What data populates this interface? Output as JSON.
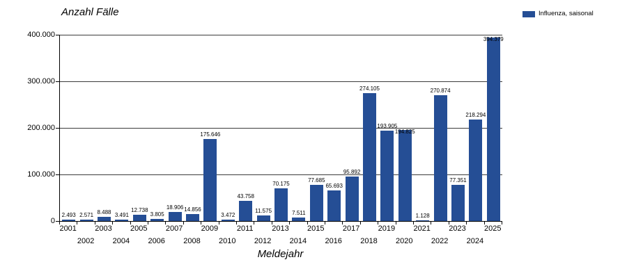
{
  "chart": {
    "title": "Anzahl Fälle",
    "x_axis_title": "Meldejahr"
  },
  "legend": {
    "label": "Influenza, saisonal",
    "swatch_color": "#254E95"
  },
  "chart_data": {
    "type": "bar",
    "title": "Anzahl Fälle",
    "xlabel": "Meldejahr",
    "ylabel": "Anzahl Fälle",
    "categories": [
      "2001",
      "2002",
      "2003",
      "2004",
      "2005",
      "2006",
      "2007",
      "2008",
      "2009",
      "2010",
      "2011",
      "2012",
      "2013",
      "2014",
      "2015",
      "2016",
      "2017",
      "2018",
      "2019",
      "2020",
      "2021",
      "2022",
      "2023",
      "2024",
      "2025"
    ],
    "series": [
      {
        "name": "Influenza, saisonal",
        "color": "#254E95",
        "values": [
          2493,
          2571,
          8488,
          3491,
          12738,
          3805,
          18906,
          14856,
          175646,
          3472,
          43758,
          11575,
          70175,
          7511,
          77685,
          65693,
          95892,
          274105,
          193905,
          194825,
          1128,
          270874,
          77351,
          218294,
          394379
        ],
        "value_labels": [
          "2.493",
          "2.571",
          "8.488",
          "3.491",
          "12.738",
          "3.805",
          "18.906",
          "14.856",
          "175.646",
          "3.472",
          "43.758",
          "11.575",
          "70.175",
          "7.511",
          "77.685",
          "65.693",
          "95.892",
          "274.105",
          "193.905",
          "194.825",
          "1.128",
          "270.874",
          "77.351",
          "218.294",
          "394.379"
        ]
      }
    ],
    "ylim": [
      0,
      400000
    ],
    "ytick_values": [
      0,
      100000,
      200000,
      300000,
      400000
    ],
    "ytick_labels": [
      "0",
      "100.000",
      "200.000",
      "300.000",
      "400.000"
    ],
    "grid": true,
    "grid_color": "#3a3a3a",
    "legend_position": "top-right",
    "labels_drawn_on_bar": [
      "2020",
      "2025"
    ]
  }
}
